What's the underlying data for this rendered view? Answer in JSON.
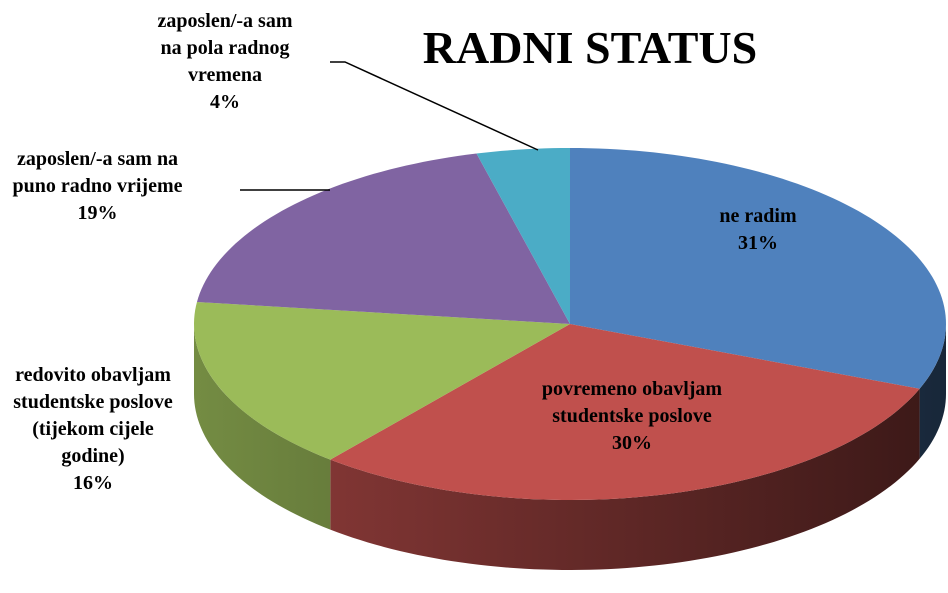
{
  "chart_data": {
    "type": "pie3d",
    "title": "RADNI STATUS",
    "categories": [
      "ne radim",
      "povremeno obavljam studentske poslove",
      "redovito obavljam studentske poslove (tijekom cijele godine)",
      "zaposlen/-a sam na puno radno vrijeme",
      "zaposlen/-a sam na pola radnog vremena"
    ],
    "values": [
      31,
      30,
      16,
      19,
      4
    ],
    "value_labels": [
      "31%",
      "30%",
      "16%",
      "19%",
      "4%"
    ],
    "colors": [
      "#4f81bd",
      "#c0504d",
      "#9bbb59",
      "#8064a2",
      "#4bacc6"
    ]
  }
}
